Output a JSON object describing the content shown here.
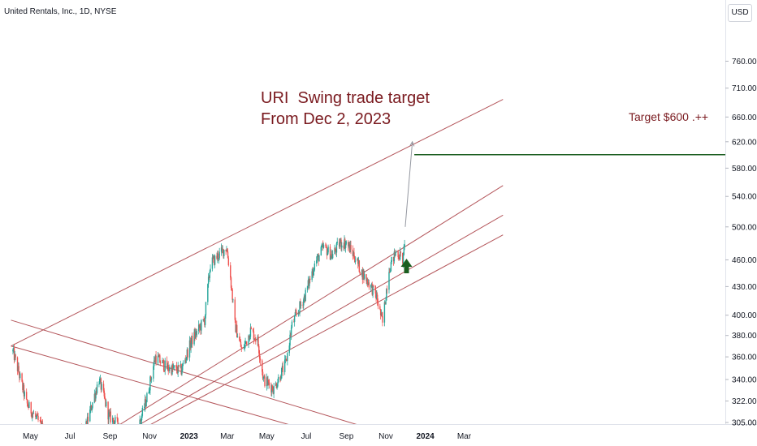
{
  "symbol_title": "United Rentals, Inc., 1D, NYSE",
  "currency": "USD",
  "chart_data": {
    "type": "candlestick",
    "title": "URI  Swing trade target",
    "subtitle": "From Dec 2, 2023",
    "target_label": "Target $600 .++",
    "x_ticks": [
      "May",
      "Jul",
      "Sep",
      "Nov",
      "2023",
      "Mar",
      "May",
      "Jul",
      "Sep",
      "Nov",
      "2024",
      "Mar"
    ],
    "y_ticks": [
      305,
      322,
      340,
      360,
      380,
      400,
      430,
      460,
      500,
      540,
      580,
      620,
      660,
      710,
      760
    ],
    "y_tick_labels": [
      "305.00",
      "322.00",
      "340.00",
      "360.00",
      "380.00",
      "400.00",
      "430.00",
      "460.00",
      "500.00",
      "540.00",
      "580.00",
      "620.00",
      "660.00",
      "710.00",
      "760.00"
    ],
    "y_scale": "log",
    "ylim": [
      303,
      780
    ],
    "price_path": [
      [
        "2022-04-04",
        365
      ],
      [
        "2022-04-25",
        320
      ],
      [
        "2022-05-20",
        300
      ],
      [
        "2022-06-15",
        285
      ],
      [
        "2022-07-05",
        290
      ],
      [
        "2022-07-25",
        300
      ],
      [
        "2022-08-15",
        340
      ],
      [
        "2022-08-30",
        310
      ],
      [
        "2022-09-20",
        300
      ],
      [
        "2022-10-10",
        292
      ],
      [
        "2022-10-28",
        325
      ],
      [
        "2022-11-10",
        360
      ],
      [
        "2022-11-28",
        350
      ],
      [
        "2022-12-20",
        348
      ],
      [
        "2023-01-05",
        375
      ],
      [
        "2023-01-25",
        395
      ],
      [
        "2023-02-03",
        455
      ],
      [
        "2023-02-15",
        465
      ],
      [
        "2023-02-28",
        475
      ],
      [
        "2023-03-06",
        440
      ],
      [
        "2023-03-13",
        390
      ],
      [
        "2023-03-24",
        365
      ],
      [
        "2023-04-06",
        385
      ],
      [
        "2023-04-17",
        375
      ],
      [
        "2023-04-26",
        340
      ],
      [
        "2023-05-12",
        332
      ],
      [
        "2023-05-31",
        355
      ],
      [
        "2023-06-09",
        390
      ],
      [
        "2023-06-29",
        420
      ],
      [
        "2023-07-14",
        455
      ],
      [
        "2023-07-28",
        475
      ],
      [
        "2023-08-10",
        465
      ],
      [
        "2023-08-22",
        480
      ],
      [
        "2023-09-01",
        480
      ],
      [
        "2023-09-13",
        465
      ],
      [
        "2023-09-25",
        445
      ],
      [
        "2023-10-05",
        435
      ],
      [
        "2023-10-17",
        420
      ],
      [
        "2023-10-27",
        392
      ],
      [
        "2023-11-06",
        450
      ],
      [
        "2023-11-17",
        470
      ],
      [
        "2023-11-28",
        460
      ],
      [
        "2023-12-01",
        495
      ]
    ],
    "channel_lines": [
      {
        "name": "upper",
        "from": [
          "2022-04-01",
          370
        ],
        "to": [
          "2024-04-30",
          690
        ]
      },
      {
        "name": "mid-upper",
        "from": [
          "2022-09-05",
          300
        ],
        "to": [
          "2024-04-30",
          555
        ]
      },
      {
        "name": "mid-lower",
        "from": [
          "2022-10-15",
          303
        ],
        "to": [
          "2024-04-30",
          515
        ]
      },
      {
        "name": "lower",
        "from": [
          "2022-11-01",
          303
        ],
        "to": [
          "2024-04-30",
          490
        ]
      },
      {
        "name": "down-1",
        "from": [
          "2022-04-01",
          395
        ],
        "to": [
          "2023-09-20",
          303
        ]
      },
      {
        "name": "down-2",
        "from": [
          "2022-04-01",
          370
        ],
        "to": [
          "2023-06-07",
          303
        ]
      }
    ],
    "target_line": {
      "y": 600,
      "from": "2023-12-15",
      "to": "2024-04-30"
    },
    "target_arrow": {
      "from": [
        "2023-12-01",
        500
      ],
      "to": [
        "2023-12-12",
        620
      ]
    },
    "up_arrow": {
      "at": [
        "2023-12-03",
        452
      ]
    }
  }
}
